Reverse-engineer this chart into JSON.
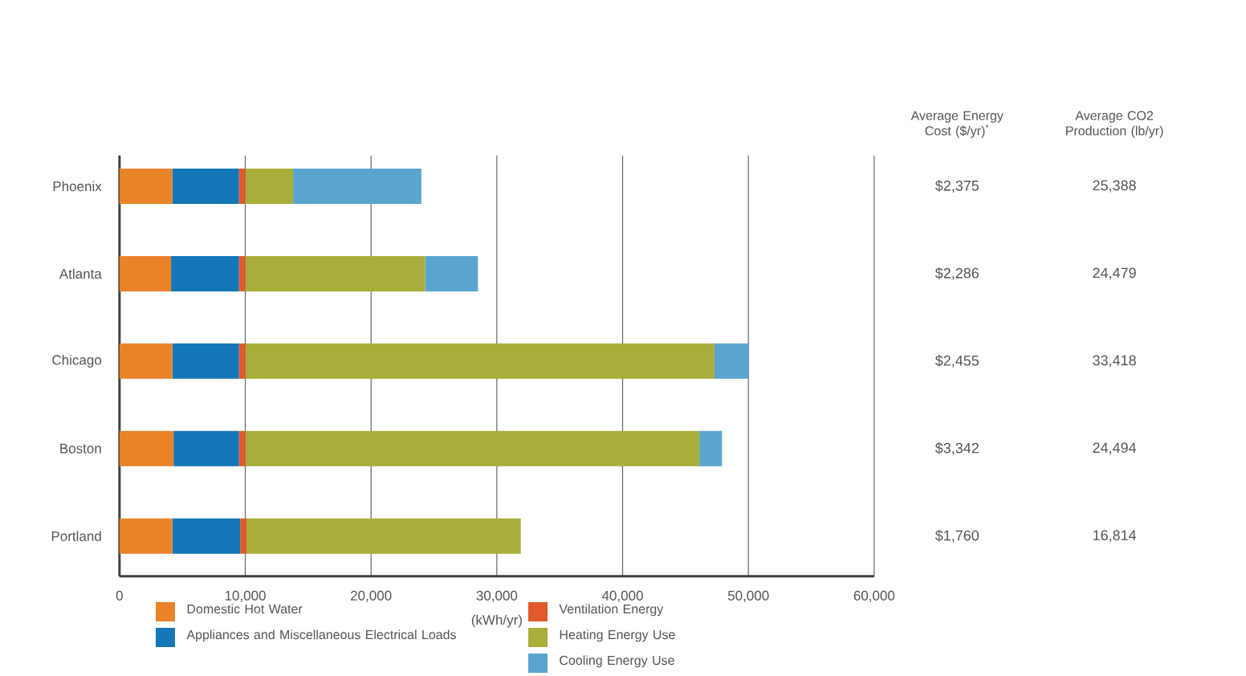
{
  "chart_data": {
    "type": "bar",
    "orientation": "horizontal",
    "stacked": true,
    "xlabel": "(kWh/yr)",
    "categories": [
      "Phoenix",
      "Atlanta",
      "Chicago",
      "Boston",
      "Portland"
    ],
    "series": [
      {
        "name": "Domestic Hot Water",
        "color": "#e8832a",
        "values": [
          4200,
          4100,
          4200,
          4300,
          4200
        ]
      },
      {
        "name": "Appliances and Miscellaneous Electrical Loads",
        "color": "#1477b8",
        "values": [
          5300,
          5400,
          5300,
          5200,
          5400
        ]
      },
      {
        "name": "Ventilation Energy",
        "color": "#e05a2b",
        "values": [
          500,
          500,
          500,
          500,
          500
        ]
      },
      {
        "name": "Heating Energy Use",
        "color": "#a9ae3a",
        "values": [
          3800,
          14300,
          37300,
          36100,
          21800
        ]
      },
      {
        "name": "Cooling Energy Use",
        "color": "#5aa5cf",
        "values": [
          10200,
          4200,
          2700,
          1800,
          0
        ]
      }
    ],
    "xlim": [
      0,
      60000
    ],
    "xticks": [
      0,
      {
        "value": 10000,
        "label": "10,000"
      },
      {
        "value": 20000,
        "label": "20,000"
      },
      {
        "value": 30000,
        "label": "30,000"
      },
      {
        "value": 40000,
        "label": "40,000"
      },
      {
        "value": 50000,
        "label": "50,000"
      },
      {
        "value": 60000,
        "label": "60,000"
      }
    ],
    "grid": "x",
    "legend": "bottom",
    "annotations": [
      "Average Energy Cost ($/yr)$^{*}$",
      "Average CO2 Production (lb/yr)",
      "$2,375",
      "25,388",
      "$2,286",
      "24,479",
      "$2,455",
      "33,418",
      "$3,342",
      "24,494",
      "$1,760",
      "16,814"
    ]
  }
}
